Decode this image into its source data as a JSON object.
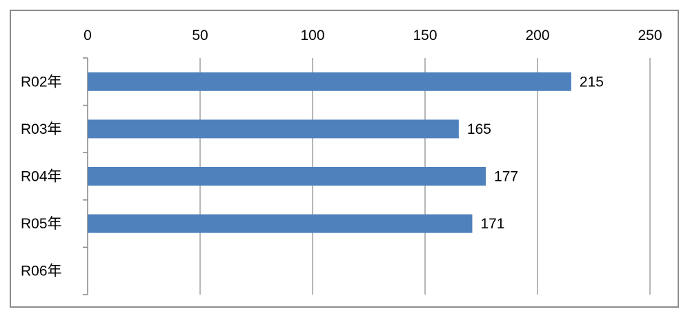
{
  "chart_data": {
    "type": "bar",
    "orientation": "horizontal",
    "categories": [
      "R02年",
      "R03年",
      "R04年",
      "R05年",
      "R06年"
    ],
    "values": [
      215,
      165,
      177,
      171,
      null
    ],
    "data_labels": [
      "215",
      "165",
      "177",
      "171",
      ""
    ],
    "xlim": [
      0,
      250
    ],
    "x_ticks": [
      0,
      50,
      100,
      150,
      200,
      250
    ],
    "x_tick_labels": [
      "0",
      "50",
      "100",
      "150",
      "200",
      "250"
    ],
    "x_axis_position": "top",
    "grid": true,
    "legend": "none",
    "bar_color": "#4f81bd",
    "gridline_color": "#868686",
    "frame_color": "#8c8c8c"
  }
}
